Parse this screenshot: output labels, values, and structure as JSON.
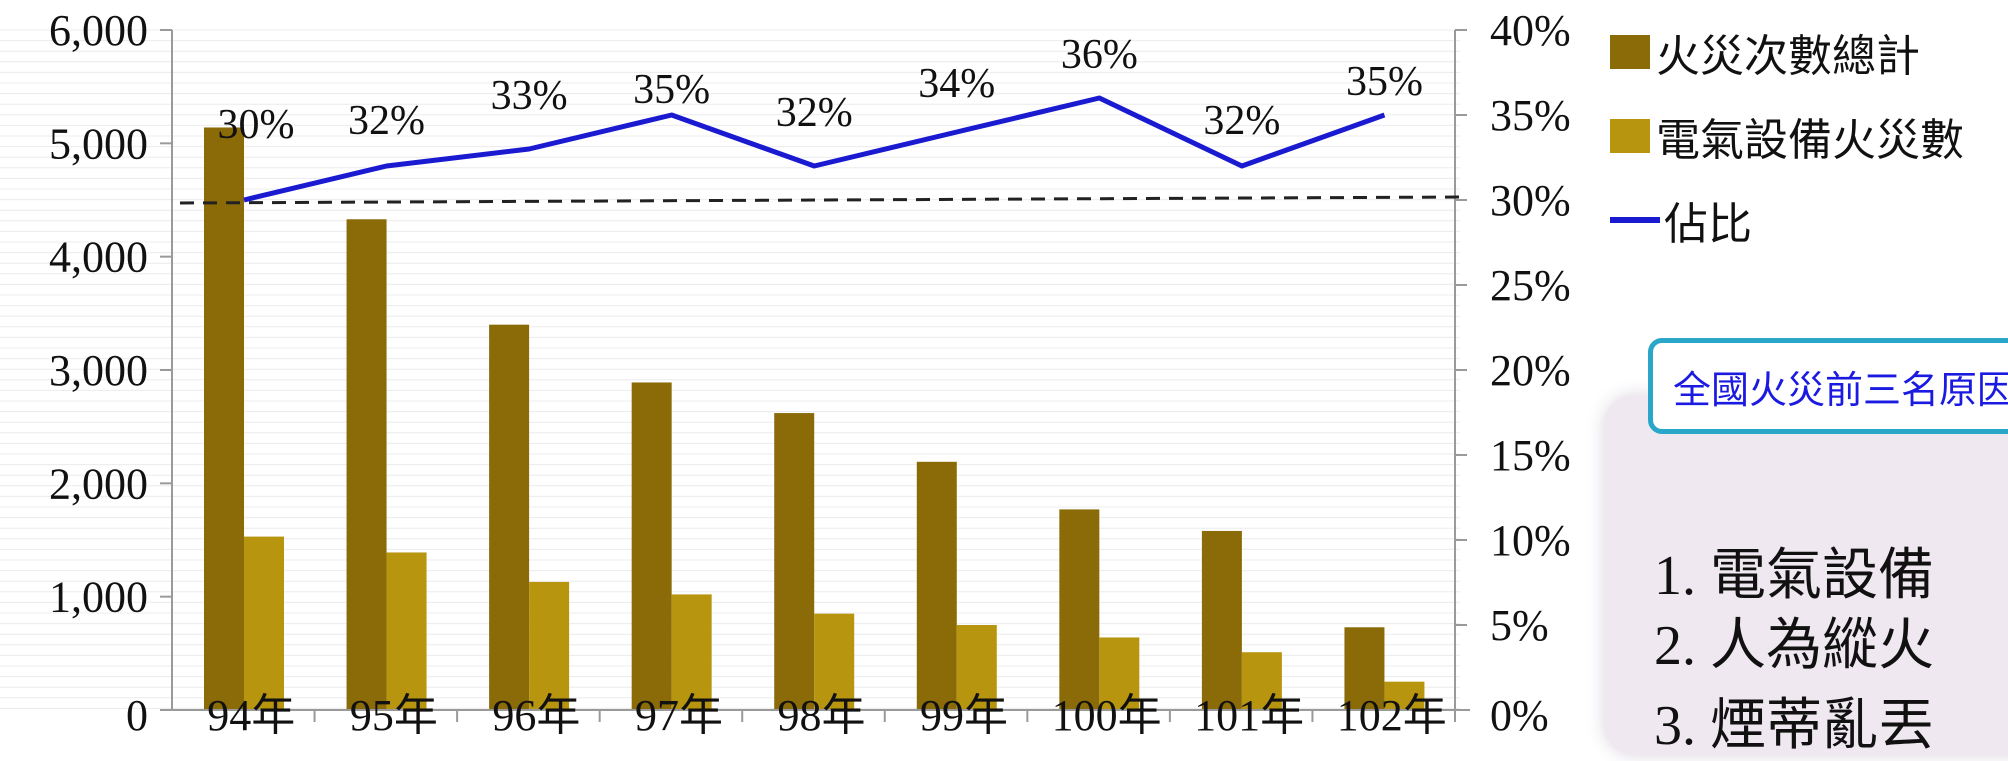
{
  "chart_data": {
    "type": "bar",
    "categories": [
      "94年",
      "95年",
      "96年",
      "97年",
      "98年",
      "99年",
      "100年",
      "101年",
      "102年"
    ],
    "series": [
      {
        "name": "火災次數總計",
        "kind": "bar",
        "axis": "left",
        "color": "#8b6a08",
        "values": [
          5140,
          4330,
          3400,
          2890,
          2620,
          2190,
          1770,
          1580,
          730
        ]
      },
      {
        "name": "電氣設備火災數",
        "kind": "bar",
        "axis": "left",
        "color": "#b8950e",
        "values": [
          1530,
          1390,
          1130,
          1020,
          850,
          750,
          640,
          510,
          250
        ]
      },
      {
        "name": "佔比",
        "kind": "line",
        "axis": "right",
        "color": "#1a1ad0",
        "values": [
          30,
          32,
          33,
          35,
          32,
          34,
          36,
          32,
          35
        ]
      }
    ],
    "line_labels": [
      "30%",
      "32%",
      "33%",
      "35%",
      "32%",
      "34%",
      "36%",
      "32%",
      "35%"
    ],
    "left_axis": {
      "ylim": [
        0,
        6000
      ],
      "ticks": [
        "0",
        "1,000",
        "2,000",
        "3,000",
        "4,000",
        "5,000",
        "6,000"
      ]
    },
    "right_axis": {
      "ylim": [
        0,
        40
      ],
      "ticks": [
        "0%",
        "5%",
        "10%",
        "15%",
        "20%",
        "25%",
        "30%",
        "35%",
        "40%"
      ]
    },
    "reference_line": {
      "axis": "right",
      "value": 30,
      "style": "dashed"
    },
    "grid": true,
    "legend_position": "right"
  },
  "callout": {
    "text": "全國火災前三名原因"
  },
  "causes": [
    "1. 電氣設備",
    "2. 人為縱火",
    "3. 煙蒂亂丟"
  ],
  "legend": [
    {
      "label": "火災次數總計",
      "color": "#8b6a08",
      "kind": "box"
    },
    {
      "label": "電氣設備火災數",
      "color": "#b8950e",
      "kind": "box"
    },
    {
      "label": "佔比",
      "color": "#1a1ad0",
      "kind": "line"
    }
  ]
}
